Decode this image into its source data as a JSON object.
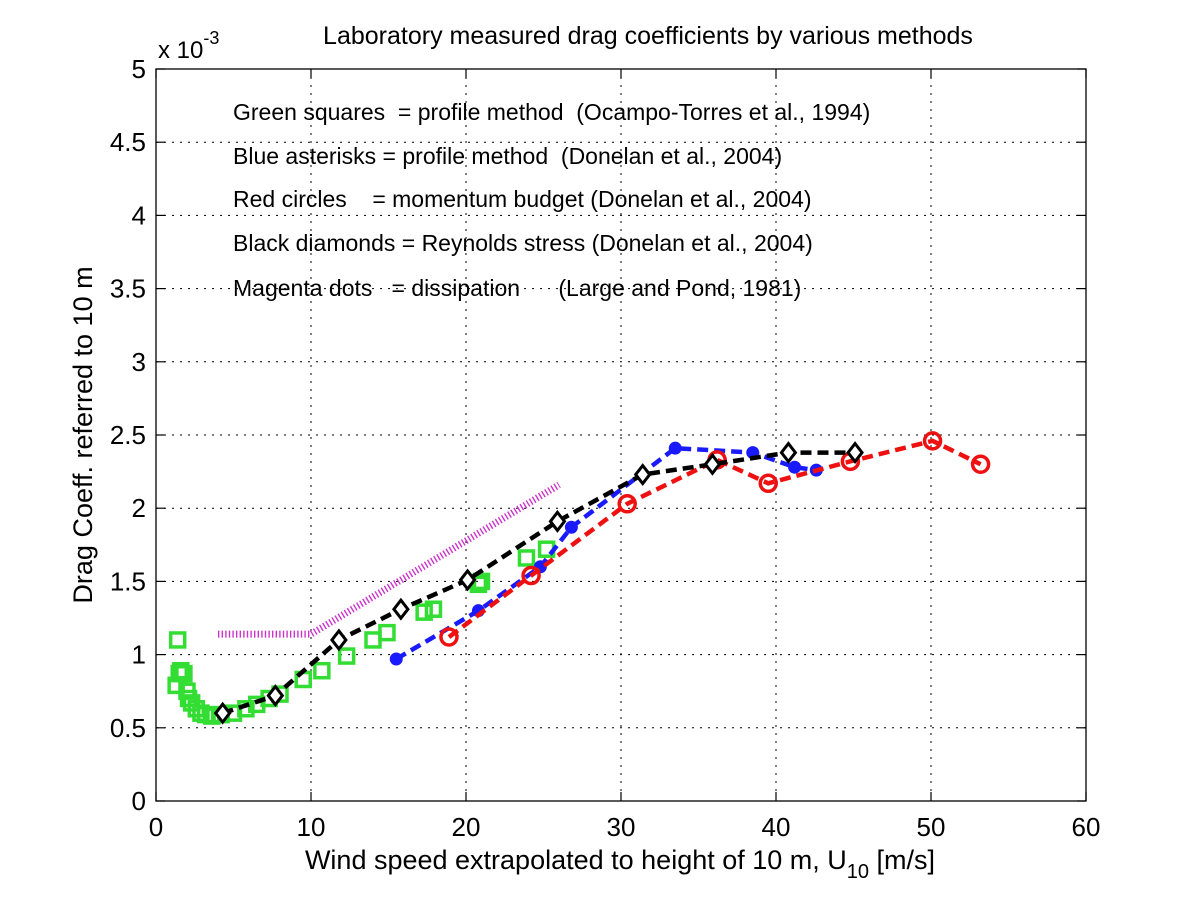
{
  "chart_data": {
    "type": "scatter",
    "title": "Laboratory measured drag coefficients by various methods",
    "xlabel_main": "Wind speed extrapolated to height of 10 m, U",
    "xlabel_sub": "10",
    "xlabel_tail": " [m/s]",
    "ylabel": "Drag Coeff. referred to 10 m",
    "y_multiplier_base": "x 10",
    "y_multiplier_exp": "-3",
    "xlim": [
      0,
      60
    ],
    "ylim": [
      0,
      5
    ],
    "xticks": [
      0,
      10,
      20,
      30,
      40,
      50,
      60
    ],
    "yticks": [
      0,
      0.5,
      1,
      1.5,
      2,
      2.5,
      3,
      3.5,
      4,
      4.5,
      5
    ],
    "grid": true,
    "legend_notes": [
      "Green squares  = profile method  (Ocampo-Torres et al., 1994)",
      "Blue asterisks = profile method  (Donelan et al., 2004)",
      "Red circles    = momentum budget (Donelan et al., 2004)",
      "Black diamonds = Reynolds stress (Donelan et al., 2004)",
      "Magenta dots   = dissipation      (Large and Pond, 1981)"
    ],
    "series": [
      {
        "marker": "square",
        "color": "#33dd33",
        "linestyle": "none",
        "x": [
          1.3,
          1.4,
          1.5,
          1.6,
          1.8,
          2.0,
          2.1,
          2.3,
          2.6,
          2.9,
          3.2,
          3.6,
          4.2,
          5.0,
          5.8,
          6.5,
          7.3,
          8.0,
          9.5,
          10.7,
          12.3,
          14.0,
          14.9,
          17.3,
          17.9,
          20.8,
          21.0,
          23.9,
          25.2
        ],
        "y": [
          0.79,
          1.1,
          0.87,
          0.89,
          0.87,
          0.75,
          0.7,
          0.67,
          0.63,
          0.6,
          0.59,
          0.58,
          0.59,
          0.6,
          0.63,
          0.66,
          0.7,
          0.73,
          0.83,
          0.89,
          0.99,
          1.1,
          1.15,
          1.29,
          1.31,
          1.48,
          1.5,
          1.66,
          1.72
        ]
      },
      {
        "marker": "dot",
        "color": "#1a1aff",
        "linestyle": "dashed",
        "x": [
          15.5,
          20.8,
          24.8,
          26.8,
          33.5,
          38.5,
          41.2,
          42.6
        ],
        "y": [
          0.97,
          1.3,
          1.6,
          1.87,
          2.41,
          2.38,
          2.28,
          2.26
        ]
      },
      {
        "marker": "circle",
        "color": "#ee1111",
        "linestyle": "dashed",
        "x": [
          18.9,
          24.2,
          30.4,
          36.2,
          39.5,
          44.8,
          50.1,
          53.2
        ],
        "y": [
          1.12,
          1.54,
          2.03,
          2.33,
          2.17,
          2.32,
          2.46,
          2.3
        ]
      },
      {
        "marker": "diamond",
        "color": "#000000",
        "linestyle": "dashed",
        "x": [
          4.3,
          7.7,
          11.8,
          15.8,
          20.1,
          25.9,
          31.4,
          35.9,
          40.8,
          45.1
        ],
        "y": [
          0.6,
          0.72,
          1.1,
          1.31,
          1.51,
          1.91,
          2.23,
          2.3,
          2.38,
          2.38
        ]
      },
      {
        "marker": "none",
        "color": "#cc33cc",
        "linestyle": "dotted",
        "x": [
          4.0,
          10.0,
          26.0
        ],
        "y": [
          1.14,
          1.14,
          2.16
        ]
      }
    ]
  }
}
